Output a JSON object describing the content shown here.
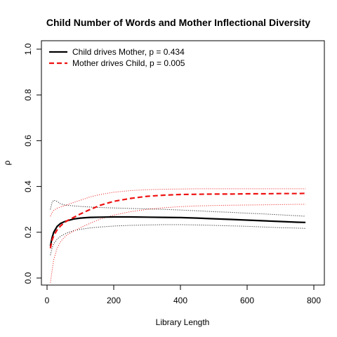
{
  "chart_data": {
    "type": "line",
    "title": "Child Number of Words and Mother Inflectional Diversity",
    "xlabel": "Library Length",
    "ylabel": "ρ",
    "xlim": [
      0,
      800
    ],
    "ylim": [
      0.0,
      1.0
    ],
    "x_ticks": [
      "0",
      "200",
      "400",
      "600",
      "800"
    ],
    "y_ticks": [
      "0.0",
      "0.2",
      "0.4",
      "0.6",
      "0.8",
      "1.0"
    ],
    "legend_position": "top-left",
    "grid": false,
    "series": [
      {
        "name": "Child drives Mother, p = 0.434",
        "color": "#000000",
        "style": "solid",
        "x": [
          10,
          15,
          20,
          30,
          40,
          50,
          60,
          80,
          100,
          130,
          160,
          200,
          250,
          300,
          350,
          400,
          450,
          500,
          550,
          600,
          650,
          700,
          750,
          775
        ],
        "y": [
          0.14,
          0.175,
          0.2,
          0.225,
          0.238,
          0.245,
          0.25,
          0.258,
          0.262,
          0.265,
          0.266,
          0.267,
          0.267,
          0.266,
          0.265,
          0.264,
          0.262,
          0.259,
          0.256,
          0.253,
          0.25,
          0.247,
          0.244,
          0.243
        ],
        "lower": [
          0.1,
          0.13,
          0.15,
          0.17,
          0.182,
          0.19,
          0.197,
          0.207,
          0.213,
          0.219,
          0.223,
          0.227,
          0.23,
          0.232,
          0.233,
          0.233,
          0.232,
          0.23,
          0.228,
          0.226,
          0.223,
          0.22,
          0.218,
          0.217
        ],
        "upper": [
          0.3,
          0.33,
          0.34,
          0.335,
          0.325,
          0.32,
          0.318,
          0.315,
          0.313,
          0.31,
          0.308,
          0.306,
          0.304,
          0.302,
          0.3,
          0.297,
          0.294,
          0.29,
          0.287,
          0.283,
          0.28,
          0.276,
          0.272,
          0.27
        ]
      },
      {
        "name": "Mother drives Child, p = 0.005",
        "color": "#ee1111",
        "style": "dashed",
        "x": [
          10,
          15,
          20,
          30,
          40,
          50,
          60,
          80,
          100,
          130,
          160,
          200,
          250,
          300,
          350,
          400,
          450,
          500,
          550,
          600,
          650,
          700,
          750,
          775
        ],
        "y": [
          0.13,
          0.165,
          0.185,
          0.21,
          0.227,
          0.24,
          0.25,
          0.265,
          0.28,
          0.3,
          0.318,
          0.335,
          0.348,
          0.357,
          0.362,
          0.365,
          0.366,
          0.367,
          0.367,
          0.368,
          0.368,
          0.369,
          0.369,
          0.37
        ],
        "lower": [
          -0.02,
          0.03,
          0.08,
          0.13,
          0.158,
          0.175,
          0.188,
          0.205,
          0.22,
          0.24,
          0.258,
          0.275,
          0.29,
          0.3,
          0.307,
          0.312,
          0.315,
          0.317,
          0.318,
          0.319,
          0.32,
          0.321,
          0.322,
          0.322
        ],
        "upper": [
          0.27,
          0.285,
          0.295,
          0.305,
          0.31,
          0.315,
          0.32,
          0.33,
          0.34,
          0.355,
          0.365,
          0.375,
          0.382,
          0.386,
          0.388,
          0.389,
          0.39,
          0.39,
          0.39,
          0.39,
          0.39,
          0.39,
          0.39,
          0.39
        ]
      }
    ]
  }
}
